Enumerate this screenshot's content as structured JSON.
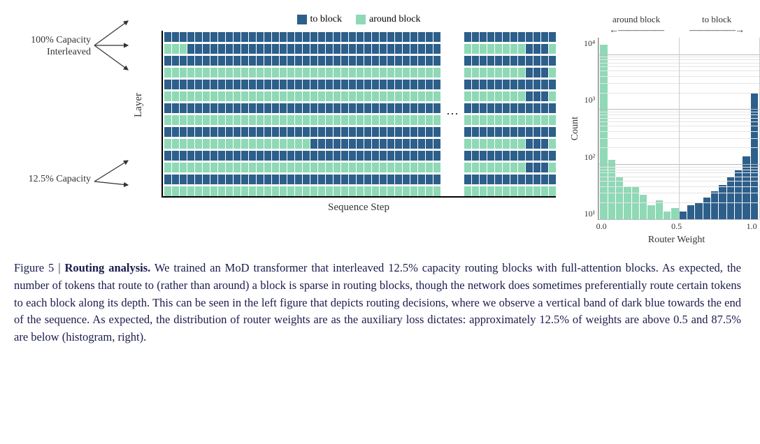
{
  "colors": {
    "to_block": "#2d5f8b",
    "around_block": "#8fd9b6",
    "grid": "#cccccc",
    "axis": "#888888",
    "text": "#333333",
    "caption_text": "#1a2850"
  },
  "legend": {
    "to_block": "to block",
    "around_block": "around block"
  },
  "left_labels": {
    "label_100_line1": "100% Capacity",
    "label_100_line2": "Interleaved",
    "label_125": "12.5% Capacity"
  },
  "axes": {
    "y_left": "Layer",
    "x_left": "Sequence Step",
    "y_hist": "Count",
    "x_hist": "Router Weight"
  },
  "heatmap": {
    "rows": 14,
    "left_cols": 36,
    "right_cols": 12,
    "ellipsis": "⋯",
    "pattern_note": "Odd rows (1,3,5...) are 100% capacity (all blue). Even rows are 12.5% capacity (mostly green, sparse blue). Vertical dark band near end of right segment."
  },
  "histogram": {
    "top_label_left": "around block",
    "top_label_right": "to block",
    "y_ticks": [
      "10⁴",
      "10³",
      "10²",
      "10¹"
    ],
    "x_ticks": [
      "0.0",
      "0.5",
      "1.0"
    ],
    "y_range_log": [
      1,
      4.3
    ],
    "x_range": [
      0,
      1
    ],
    "bars": [
      {
        "x": 0.025,
        "count": 15000,
        "color": "around"
      },
      {
        "x": 0.075,
        "count": 120,
        "color": "around"
      },
      {
        "x": 0.125,
        "count": 60,
        "color": "around"
      },
      {
        "x": 0.175,
        "count": 40,
        "color": "around"
      },
      {
        "x": 0.225,
        "count": 40,
        "color": "around"
      },
      {
        "x": 0.275,
        "count": 28,
        "color": "around"
      },
      {
        "x": 0.325,
        "count": 18,
        "color": "around"
      },
      {
        "x": 0.375,
        "count": 22,
        "color": "around"
      },
      {
        "x": 0.425,
        "count": 14,
        "color": "around"
      },
      {
        "x": 0.475,
        "count": 16,
        "color": "around"
      },
      {
        "x": 0.525,
        "count": 14,
        "color": "to"
      },
      {
        "x": 0.575,
        "count": 18,
        "color": "to"
      },
      {
        "x": 0.625,
        "count": 20,
        "color": "to"
      },
      {
        "x": 0.675,
        "count": 25,
        "color": "to"
      },
      {
        "x": 0.725,
        "count": 32,
        "color": "to"
      },
      {
        "x": 0.775,
        "count": 42,
        "color": "to"
      },
      {
        "x": 0.825,
        "count": 60,
        "color": "to"
      },
      {
        "x": 0.875,
        "count": 80,
        "color": "to"
      },
      {
        "x": 0.925,
        "count": 140,
        "color": "to"
      },
      {
        "x": 0.975,
        "count": 2000,
        "color": "to"
      }
    ]
  },
  "caption": {
    "prefix": "Figure 5 | ",
    "title": "Routing analysis.",
    "body": " We trained an MoD transformer that interleaved 12.5% capacity routing blocks with full-attention blocks. As expected, the number of tokens that route to (rather than around) a block is sparse in routing blocks, though the network does sometimes preferentially route certain tokens to each block along its depth. This can be seen in the left figure that depicts routing decisions, where we observe a vertical band of dark blue towards the end of the sequence. As expected, the distribution of router weights are as the auxiliary loss dictates: approximately 12.5% of weights are above 0.5 and 87.5% are below (histogram, right)."
  }
}
